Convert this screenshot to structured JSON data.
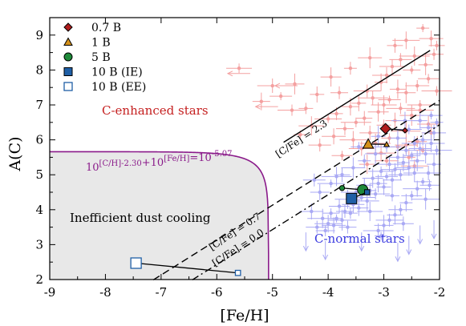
{
  "chart_data": {
    "type": "scatter",
    "xlabel": "[Fe/H]",
    "ylabel": "A(C)",
    "xlim": [
      -9,
      -2
    ],
    "ylim": [
      2,
      9.5
    ],
    "xticks": [
      "-9",
      "-8",
      "-7",
      "-6",
      "-5",
      "-4",
      "-3",
      "-2"
    ],
    "yticks": [
      "2",
      "3",
      "4",
      "5",
      "6",
      "7",
      "8",
      "9"
    ],
    "grid": false,
    "legend_placement": "top-left",
    "colors": {
      "c_enhanced": "#f4a0a0",
      "c_normal": "#a9a9f4",
      "b07": "#b01c1c",
      "b1": "#d4901a",
      "b5": "#1f8a3a",
      "b10": "#1f5fa6",
      "boundary": "#8a1a8a",
      "region": "#e8e8e8"
    },
    "legend": [
      {
        "label": "0.7 B",
        "marker": "diamond",
        "color": "#b01c1c"
      },
      {
        "label": "1 B",
        "marker": "triangle",
        "color": "#d4901a"
      },
      {
        "label": "5 B",
        "marker": "circle",
        "color": "#1f8a3a"
      },
      {
        "label": "10 B (IE)",
        "marker": "square",
        "color": "#1f5fa6"
      },
      {
        "label": "10 B (EE)",
        "marker": "open-square",
        "color": "#1f5fa6"
      }
    ],
    "models": [
      {
        "name": "0.7 B",
        "points": [
          [
            -2.97,
            6.32
          ],
          [
            -2.62,
            6.27
          ]
        ]
      },
      {
        "name": "1 B",
        "points": [
          [
            -3.28,
            5.88
          ],
          [
            -2.95,
            5.87
          ]
        ]
      },
      {
        "name": "5 B",
        "points": [
          [
            -3.38,
            4.57
          ],
          [
            -3.75,
            4.62
          ]
        ]
      },
      {
        "name": "10 B (IE)",
        "points": [
          [
            -3.58,
            4.32
          ],
          [
            -3.3,
            4.5
          ]
        ]
      },
      {
        "name": "10 B (EE)",
        "points": [
          [
            -7.45,
            2.47
          ],
          [
            -5.62,
            2.19
          ]
        ]
      }
    ],
    "lines": [
      {
        "label": "[C/Fe] = 2.3",
        "cfe": 2.3,
        "style": "solid",
        "x_range": [
          -4.8,
          -2.17
        ]
      },
      {
        "label": "[C/Fe] = 0.7",
        "cfe": 0.7,
        "style": "dashed",
        "x_range": [
          -7.14,
          -2
        ]
      },
      {
        "label": "[C/Fe] = 0.0",
        "cfe": 0.0,
        "style": "dashdot",
        "x_range": [
          -6.44,
          -2
        ]
      }
    ],
    "solar_carbon": 8.43,
    "boundary": {
      "label": "10^{[C/H]-2.30}+10^{[Fe/H]}=10^{-5.07}",
      "constant": -5.07,
      "shift": -2.3
    },
    "annotations": {
      "c_enhanced": "C-enhanced stars",
      "c_normal": "C-normal stars",
      "region": "Inefficient dust cooling"
    },
    "c_enhanced_stars": [
      [
        -2.3,
        9.2
      ],
      [
        -2.15,
        8.9
      ],
      [
        -2.05,
        8.7
      ],
      [
        -2.6,
        8.85
      ],
      [
        -2.1,
        8.45
      ],
      [
        -2.45,
        8.4
      ],
      [
        -2.7,
        8.3
      ],
      [
        -2.25,
        8.15
      ],
      [
        -2.85,
        8.1
      ],
      [
        -2.5,
        8.0
      ],
      [
        -2.95,
        7.85
      ],
      [
        -2.2,
        7.75
      ],
      [
        -3.05,
        7.65
      ],
      [
        -2.4,
        7.55
      ],
      [
        -2.75,
        7.45
      ],
      [
        -3.3,
        7.4
      ],
      [
        -2.6,
        7.35
      ],
      [
        -3.2,
        7.2
      ],
      [
        -2.9,
        7.15
      ],
      [
        -3.45,
        7.05
      ],
      [
        -2.35,
        7.0
      ],
      [
        -3.6,
        6.95
      ],
      [
        -2.7,
        6.9
      ],
      [
        -3.1,
        6.8
      ],
      [
        -3.85,
        6.75
      ],
      [
        -2.5,
        6.7
      ],
      [
        -3.35,
        6.62
      ],
      [
        -4.0,
        6.6
      ],
      [
        -2.8,
        6.55
      ],
      [
        -3.5,
        6.5
      ],
      [
        -2.2,
        6.45
      ],
      [
        -3.0,
        6.42
      ],
      [
        -4.3,
        6.4
      ],
      [
        -3.7,
        6.32
      ],
      [
        -2.6,
        6.25
      ],
      [
        -3.25,
        6.2
      ],
      [
        -4.5,
        6.15
      ],
      [
        -3.9,
        6.1
      ],
      [
        -2.9,
        6.05
      ],
      [
        -3.55,
        6.0
      ],
      [
        -2.4,
        5.95
      ],
      [
        -3.15,
        5.9
      ],
      [
        -4.15,
        5.85
      ],
      [
        -2.75,
        5.8
      ],
      [
        -3.4,
        5.75
      ],
      [
        -2.3,
        5.7
      ],
      [
        -3.05,
        5.62
      ],
      [
        -3.75,
        5.55
      ],
      [
        -2.55,
        5.5
      ],
      [
        -2.95,
        5.4
      ],
      [
        -3.3,
        5.3
      ],
      [
        -2.45,
        5.25
      ],
      [
        -4.6,
        7.6
      ],
      [
        -5.0,
        7.55
      ],
      [
        -4.85,
        7.25
      ],
      [
        -4.2,
        7.3
      ],
      [
        -5.6,
        8.05
      ],
      [
        -5.2,
        7.1
      ],
      [
        -4.65,
        6.85
      ],
      [
        -3.95,
        7.8
      ],
      [
        -3.6,
        8.05
      ],
      [
        -3.25,
        8.35
      ],
      [
        -2.8,
        8.7
      ],
      [
        -2.35,
        6.85
      ],
      [
        -2.15,
        6.2
      ],
      [
        -2.05,
        7.4
      ],
      [
        -2.6,
        5.85
      ],
      [
        -4.4,
        6.9
      ],
      [
        -3.0,
        7.0
      ],
      [
        -3.8,
        7.35
      ]
    ],
    "c_enhanced_upper_limits": [
      [
        -5.4,
        7.9
      ],
      [
        -4.9,
        6.95
      ],
      [
        -4.55,
        7.55
      ]
    ],
    "c_normal_stars": [
      [
        -2.05,
        6.5
      ],
      [
        -2.1,
        6.2
      ],
      [
        -2.2,
        6.35
      ],
      [
        -2.15,
        5.9
      ],
      [
        -2.3,
        6.0
      ],
      [
        -2.25,
        5.6
      ],
      [
        -2.35,
        5.75
      ],
      [
        -2.4,
        5.4
      ],
      [
        -2.45,
        5.9
      ],
      [
        -2.5,
        5.55
      ],
      [
        -2.55,
        5.2
      ],
      [
        -2.6,
        5.7
      ],
      [
        -2.65,
        5.35
      ],
      [
        -2.7,
        5.0
      ],
      [
        -2.75,
        5.5
      ],
      [
        -2.8,
        5.15
      ],
      [
        -2.85,
        4.85
      ],
      [
        -2.9,
        5.3
      ],
      [
        -2.95,
        4.95
      ],
      [
        -3.0,
        4.65
      ],
      [
        -3.05,
        5.1
      ],
      [
        -3.1,
        4.75
      ],
      [
        -3.15,
        4.45
      ],
      [
        -3.2,
        4.9
      ],
      [
        -3.25,
        4.55
      ],
      [
        -3.3,
        4.25
      ],
      [
        -3.35,
        4.7
      ],
      [
        -3.4,
        4.35
      ],
      [
        -3.45,
        4.05
      ],
      [
        -3.5,
        4.5
      ],
      [
        -3.55,
        4.15
      ],
      [
        -3.6,
        3.9
      ],
      [
        -3.65,
        4.3
      ],
      [
        -3.7,
        3.95
      ],
      [
        -3.75,
        3.7
      ],
      [
        -3.8,
        4.1
      ],
      [
        -3.85,
        3.75
      ],
      [
        -3.9,
        3.55
      ],
      [
        -3.95,
        3.9
      ],
      [
        -4.0,
        3.6
      ],
      [
        -4.05,
        3.4
      ],
      [
        -4.1,
        3.75
      ],
      [
        -4.2,
        3.5
      ],
      [
        -2.1,
        5.3
      ],
      [
        -2.2,
        5.05
      ],
      [
        -2.3,
        4.8
      ],
      [
        -2.4,
        4.6
      ],
      [
        -2.5,
        4.4
      ],
      [
        -2.6,
        4.2
      ],
      [
        -2.7,
        4.0
      ],
      [
        -2.8,
        3.85
      ],
      [
        -2.9,
        3.7
      ],
      [
        -3.0,
        3.55
      ],
      [
        -3.1,
        3.4
      ],
      [
        -2.15,
        6.7
      ],
      [
        -2.35,
        6.55
      ],
      [
        -2.55,
        6.3
      ],
      [
        -2.75,
        6.05
      ],
      [
        -2.95,
        5.8
      ],
      [
        -3.15,
        5.6
      ],
      [
        -3.35,
        5.4
      ],
      [
        -3.55,
        5.2
      ],
      [
        -3.75,
        5.0
      ],
      [
        -3.95,
        4.75
      ],
      [
        -4.15,
        4.5
      ],
      [
        -2.05,
        5.7
      ],
      [
        -2.45,
        5.05
      ],
      [
        -2.85,
        4.4
      ],
      [
        -3.25,
        3.95
      ],
      [
        -3.65,
        3.5
      ],
      [
        -2.25,
        4.3
      ],
      [
        -2.65,
        3.6
      ],
      [
        -3.05,
        3.25
      ],
      [
        -4.3,
        3.95
      ],
      [
        -3.45,
        5.8
      ],
      [
        -2.62,
        6.55
      ],
      [
        -2.18,
        4.7
      ],
      [
        -3.85,
        4.95
      ],
      [
        -4.25,
        4.85
      ],
      [
        -3.1,
        6.1
      ]
    ],
    "c_normal_upper_limits": [
      [
        -2.1,
        3.7
      ],
      [
        -2.35,
        3.55
      ],
      [
        -2.55,
        3.25
      ],
      [
        -3.4,
        3.35
      ],
      [
        -4.05,
        3.1
      ],
      [
        -4.4,
        3.35
      ],
      [
        -2.75,
        3.05
      ]
    ]
  }
}
